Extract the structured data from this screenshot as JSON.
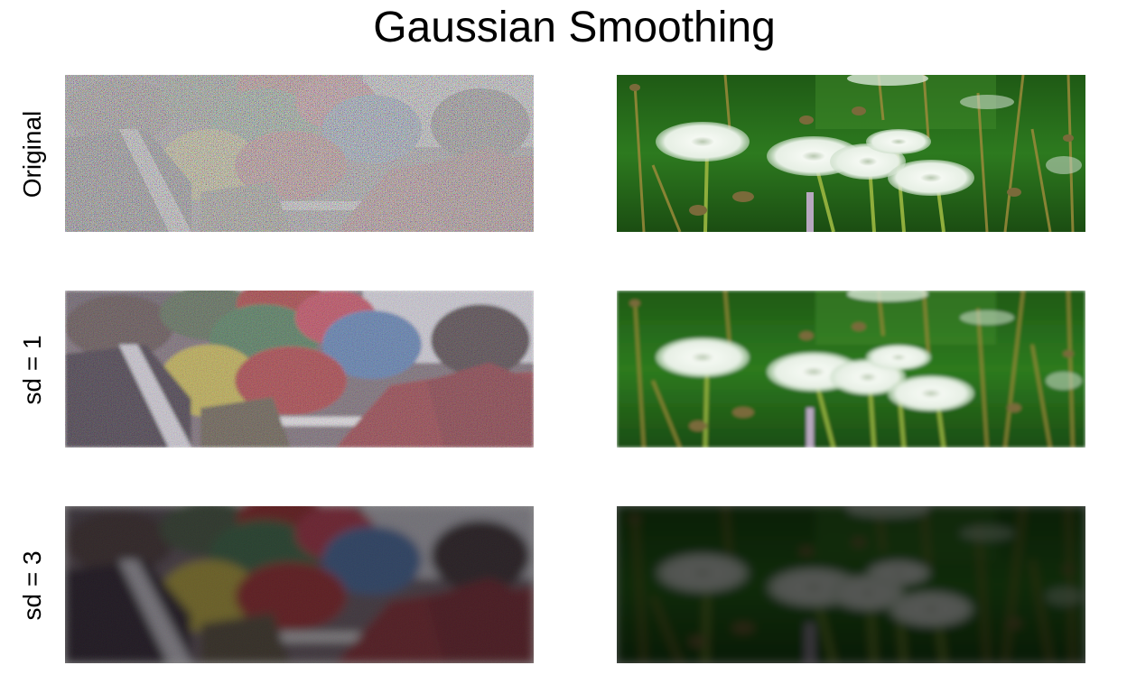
{
  "figure": {
    "title": "Gaussian Smoothing",
    "row_labels": [
      "Original",
      "sd = 1",
      "sd = 3"
    ],
    "columns": [
      "balloons-scene",
      "dandelions-scene"
    ],
    "panels": [
      {
        "row": "Original",
        "image": "balloons-scene",
        "noise_level": 1.0,
        "blur_sd": 0,
        "brightness": 1.0
      },
      {
        "row": "Original",
        "image": "dandelions-scene",
        "noise_level": 0.0,
        "blur_sd": 0,
        "brightness": 1.0
      },
      {
        "row": "sd = 1",
        "image": "balloons-scene",
        "noise_level": 0.45,
        "blur_sd": 1,
        "brightness": 0.95
      },
      {
        "row": "sd = 1",
        "image": "dandelions-scene",
        "noise_level": 0.0,
        "blur_sd": 1,
        "brightness": 0.9
      },
      {
        "row": "sd = 3",
        "image": "balloons-scene",
        "noise_level": 0.1,
        "blur_sd": 3,
        "brightness": 0.55
      },
      {
        "row": "sd = 3",
        "image": "dandelions-scene",
        "noise_level": 0.0,
        "blur_sd": 3,
        "brightness": 0.35
      }
    ],
    "colors": {
      "background": "#ffffff",
      "text": "#000000"
    }
  }
}
